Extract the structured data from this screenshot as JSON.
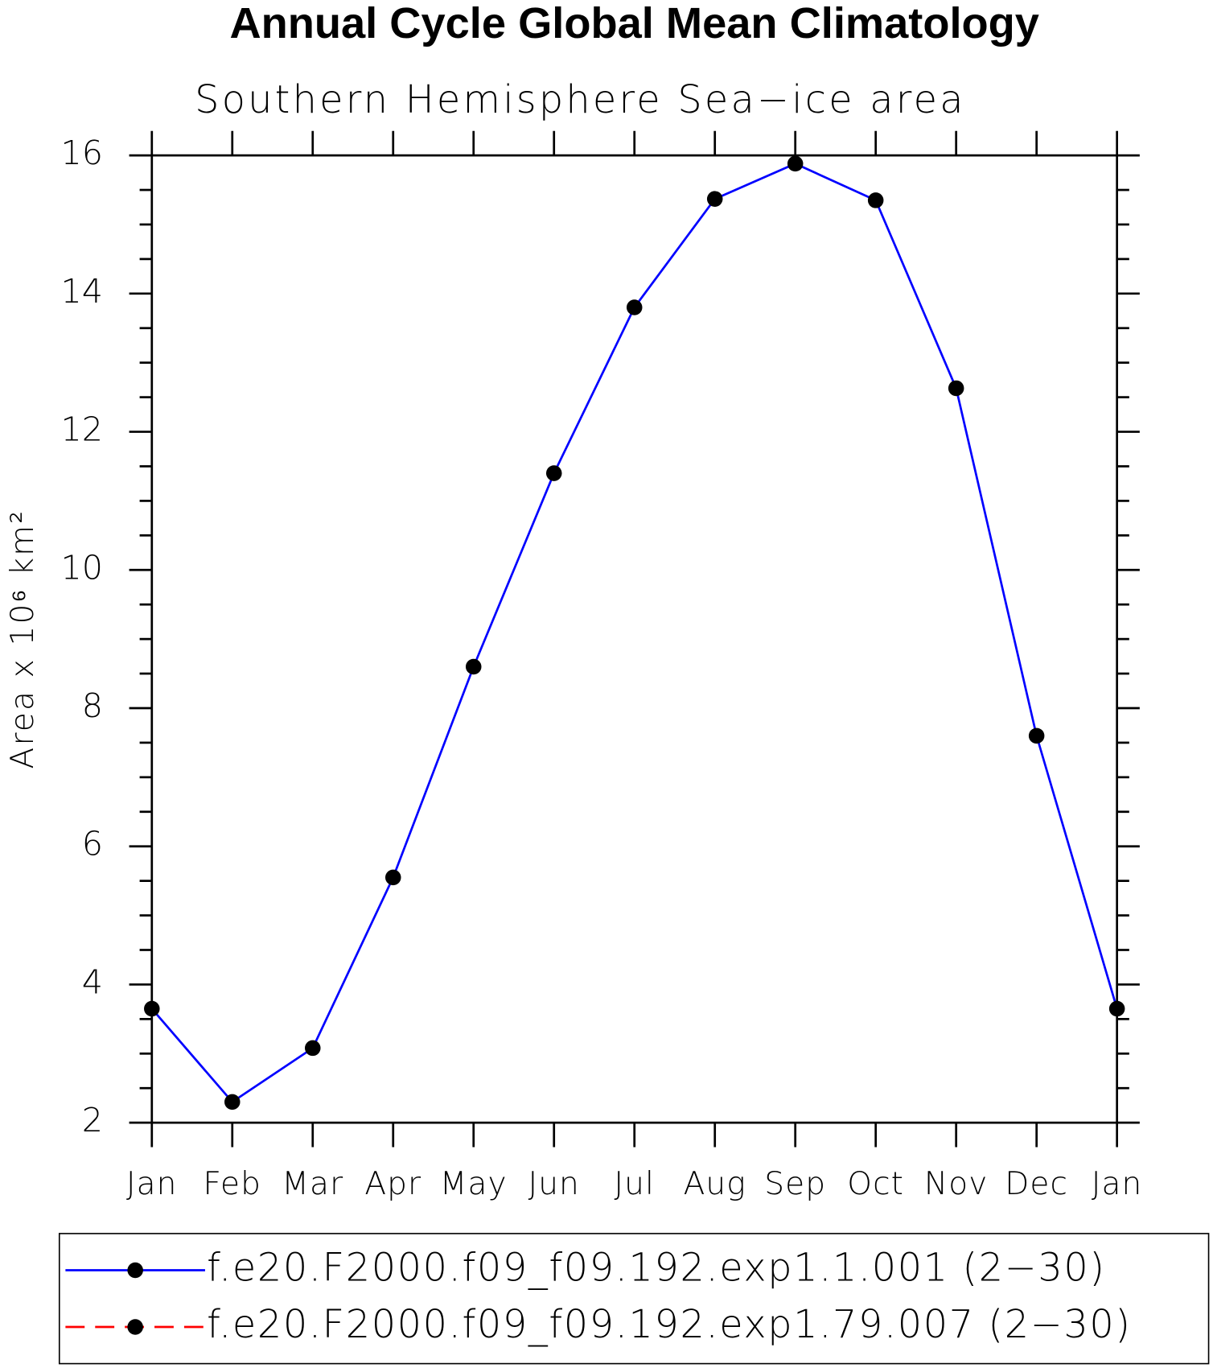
{
  "chart_data": {
    "type": "line",
    "title": "Annual Cycle Global Mean Climatology",
    "subtitle": "Southern Hemisphere Sea−ice area",
    "y_label": "Area x 10⁶ km²",
    "categories": [
      "Jan",
      "Feb",
      "Mar",
      "Apr",
      "May",
      "Jun",
      "Jul",
      "Aug",
      "Sep",
      "Oct",
      "Nov",
      "Dec",
      "Jan"
    ],
    "series": [
      {
        "name": "f.e20.F2000.f09_f09.192.exp1.1.001 (2−30)",
        "color": "#0000ff",
        "dash": "solid",
        "values": [
          3.65,
          2.3,
          3.08,
          5.55,
          8.6,
          11.4,
          13.8,
          15.37,
          15.88,
          15.35,
          12.63,
          7.6,
          3.65
        ]
      },
      {
        "name": "f.e20.F2000.f09_f09.192.exp1.79.007 (2−30)",
        "color": "#ff0000",
        "dash": "dashed",
        "values": [
          null,
          null,
          null,
          null,
          null,
          null,
          null,
          null,
          null,
          null,
          null,
          null,
          null
        ]
      }
    ],
    "ylim": [
      2,
      16
    ],
    "yticks": [
      2,
      4,
      6,
      8,
      10,
      12,
      14,
      16
    ],
    "grid": false
  }
}
